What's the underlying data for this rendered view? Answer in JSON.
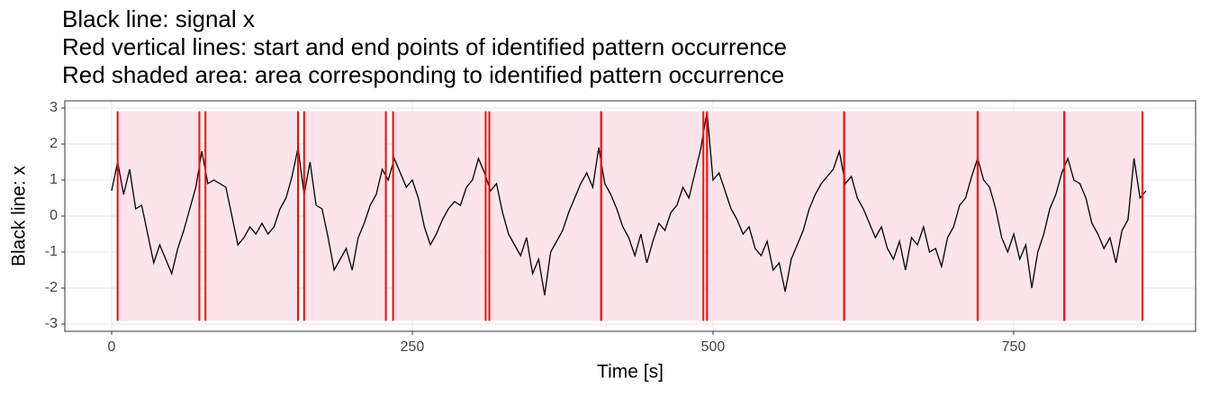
{
  "chart_data": {
    "type": "line",
    "title_lines": [
      "Black line: signal x",
      "Red vertical lines: start and end points of identified pattern occurrence",
      "Red shaded area: area corresponding to identified pattern occurrence"
    ],
    "xlabel": "Time [s]",
    "ylabel": "Black line: x",
    "xlim": [
      -38.9,
      901.2
    ],
    "ylim": [
      -3.2,
      3.2
    ],
    "xticks": [
      0,
      250,
      500,
      750
    ],
    "yticks": [
      -3,
      -2,
      -1,
      0,
      1,
      2,
      3
    ],
    "grid": true,
    "x": [
      0,
      5,
      10,
      15,
      20,
      25,
      30,
      35,
      40,
      45,
      50,
      55,
      60,
      65,
      70,
      75,
      80,
      85,
      90,
      95,
      100,
      105,
      110,
      115,
      120,
      125,
      130,
      135,
      140,
      145,
      150,
      155,
      160,
      165,
      170,
      175,
      180,
      185,
      190,
      195,
      200,
      205,
      210,
      215,
      220,
      225,
      230,
      235,
      240,
      245,
      250,
      255,
      260,
      265,
      270,
      275,
      280,
      285,
      290,
      295,
      300,
      305,
      310,
      315,
      320,
      325,
      330,
      335,
      340,
      345,
      350,
      355,
      360,
      365,
      370,
      375,
      380,
      385,
      390,
      395,
      400,
      405,
      410,
      415,
      420,
      425,
      430,
      435,
      440,
      445,
      450,
      455,
      460,
      465,
      470,
      475,
      480,
      485,
      490,
      495,
      500,
      505,
      510,
      515,
      520,
      525,
      530,
      535,
      540,
      545,
      550,
      555,
      560,
      565,
      570,
      575,
      580,
      585,
      590,
      595,
      600,
      605,
      610,
      615,
      620,
      625,
      630,
      635,
      640,
      645,
      650,
      655,
      660,
      665,
      670,
      675,
      680,
      685,
      690,
      695,
      700,
      705,
      710,
      715,
      720,
      725,
      730,
      735,
      740,
      745,
      750,
      755,
      760,
      765,
      770,
      775,
      780,
      785,
      790,
      795,
      800,
      805,
      810,
      815,
      820,
      825,
      830,
      835,
      840,
      845,
      850,
      855,
      860
    ],
    "series": [
      {
        "name": "signal x",
        "color": "#000000",
        "values": [
          0.7,
          1.5,
          0.6,
          1.3,
          0.2,
          0.3,
          -0.5,
          -1.3,
          -0.8,
          -1.2,
          -1.6,
          -0.9,
          -0.4,
          0.2,
          0.8,
          1.8,
          0.9,
          1.0,
          0.9,
          0.8,
          0,
          -0.8,
          -0.6,
          -0.3,
          -0.5,
          -0.2,
          -0.5,
          -0.3,
          0.2,
          0.5,
          1.1,
          1.9,
          0.6,
          1.5,
          0.3,
          0.2,
          -0.6,
          -1.5,
          -1.2,
          -0.9,
          -1.5,
          -0.6,
          -0.2,
          0.3,
          0.6,
          1.3,
          1.0,
          1.6,
          1.2,
          0.8,
          1.0,
          0.5,
          -0.3,
          -0.8,
          -0.5,
          -0.1,
          0.2,
          0.4,
          0.3,
          0.8,
          1.0,
          1.6,
          1.2,
          0.7,
          0.9,
          0.1,
          -0.5,
          -0.8,
          -1.1,
          -0.6,
          -1.6,
          -1.2,
          -2.2,
          -1.0,
          -0.7,
          -0.4,
          0.1,
          0.5,
          0.9,
          1.2,
          0.8,
          1.9,
          0.9,
          0.6,
          0.2,
          -0.3,
          -0.6,
          -1.1,
          -0.5,
          -1.3,
          -0.7,
          -0.2,
          -0.4,
          0.1,
          0.3,
          0.8,
          0.5,
          1.2,
          1.9,
          2.9,
          1.0,
          1.2,
          0.7,
          0.2,
          -0.1,
          -0.5,
          -0.3,
          -0.9,
          -1.1,
          -0.7,
          -1.5,
          -1.3,
          -2.1,
          -1.2,
          -0.8,
          -0.4,
          0.2,
          0.6,
          0.9,
          1.1,
          1.3,
          1.8,
          0.9,
          1.1,
          0.5,
          0.2,
          -0.2,
          -0.6,
          -0.3,
          -0.9,
          -1.2,
          -0.7,
          -1.5,
          -0.6,
          -0.8,
          -0.3,
          -1.0,
          -0.9,
          -1.4,
          -0.6,
          -0.3,
          0.3,
          0.5,
          1.1,
          1.6,
          1.0,
          0.8,
          0.2,
          -0.6,
          -1.0,
          -0.5,
          -1.2,
          -0.8,
          -2.0,
          -1.0,
          -0.5,
          0.2,
          0.6,
          1.2,
          1.6,
          1.0,
          0.9,
          0.5,
          -0.2,
          -0.5,
          -0.9,
          -0.6,
          -1.3,
          -0.4,
          -0.1,
          1.6,
          0.5,
          0.7
        ]
      }
    ],
    "segment_color": "#ff0000",
    "shade_color": "#fde4ea",
    "segments": [
      [
        5,
        73
      ],
      [
        78,
        155
      ],
      [
        160,
        228
      ],
      [
        234,
        311
      ],
      [
        314,
        407
      ],
      [
        407,
        492
      ],
      [
        495,
        609
      ],
      [
        609,
        720
      ],
      [
        720,
        792
      ],
      [
        792,
        857
      ]
    ]
  }
}
